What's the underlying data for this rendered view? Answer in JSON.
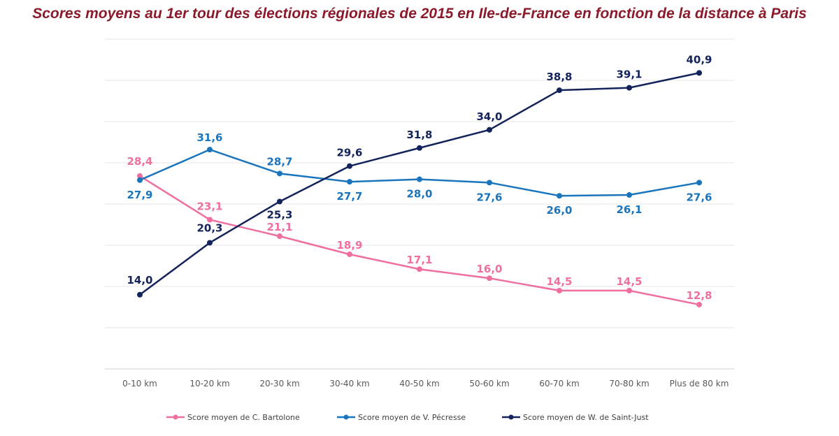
{
  "chart_data": {
    "type": "line",
    "title": "Scores moyens au 1er tour des élections régionales de 2015 en Ile-de-France en fonction de la distance à Paris",
    "categories": [
      "0-10 km",
      "10-20 km",
      "20-30 km",
      "30-40 km",
      "40-50 km",
      "50-60 km",
      "60-70 km",
      "70-80 km",
      "Plus de 80 km"
    ],
    "ylim": [
      5,
      45
    ],
    "grid": true,
    "legend_position": "bottom",
    "series": [
      {
        "name": "Score moyen de C. Bartolone",
        "color": "#ef6fa0",
        "values": [
          28.4,
          23.1,
          21.1,
          18.9,
          17.1,
          16.0,
          14.5,
          14.5,
          12.8
        ],
        "labels": [
          "28,4",
          "23,1",
          "21,1",
          "18,9",
          "17,1",
          "16,0",
          "14,5",
          "14,5",
          "12,8"
        ]
      },
      {
        "name": "Score moyen de V. Pécresse",
        "color": "#1a75bc",
        "values": [
          27.9,
          31.6,
          28.7,
          27.7,
          28.0,
          27.6,
          26.0,
          26.1,
          27.6
        ],
        "labels": [
          "27,9",
          "31,6",
          "28,7",
          "27,7",
          "28,0",
          "27,6",
          "26,0",
          "26,1",
          "27,6"
        ]
      },
      {
        "name": "Score moyen de W. de Saint-Just",
        "color": "#13235b",
        "values": [
          14.0,
          20.3,
          25.3,
          29.6,
          31.8,
          34.0,
          38.8,
          39.1,
          40.9
        ],
        "labels": [
          "14,0",
          "20,3",
          "25,3",
          "29,6",
          "31,8",
          "34,0",
          "38,8",
          "39,1",
          "40,9"
        ]
      }
    ]
  }
}
